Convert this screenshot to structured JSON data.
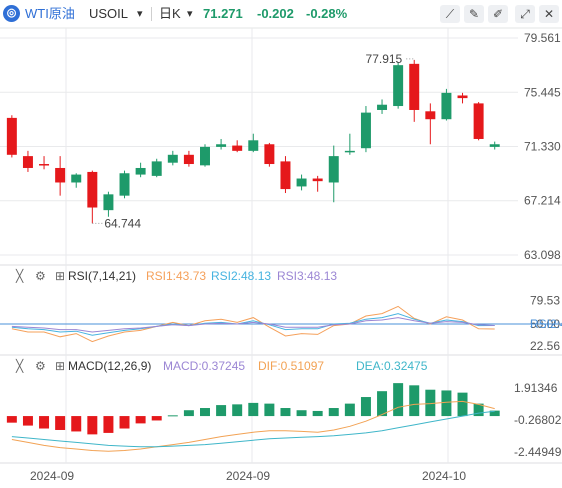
{
  "header": {
    "symbol_icon": "chart-logo-icon",
    "name": "WTI原油",
    "code": "USOIL",
    "interval": "日K",
    "price": "71.271",
    "change": "-0.202",
    "change_pct": "-0.28%",
    "tools": [
      "line-draw-icon",
      "pencil-icon",
      "brush-icon",
      "expand-icon",
      "close-icon"
    ]
  },
  "colors": {
    "up": "#1e9a6a",
    "down": "#e5181b",
    "rsi1": "#f5a05a",
    "rsi2": "#46b3e0",
    "rsi3": "#9b86d4",
    "dif": "#f2a254",
    "dea": "#3fb6c9",
    "axis_text": "#555555",
    "grid": "#e9eaec",
    "price_text": "#1e9a6a"
  },
  "rsi_panel": {
    "label": "RSI(7,14,21)",
    "rsi1": "RSI1:43.73",
    "rsi2": "RSI2:48.13",
    "rsi3": "RSI3:48.13"
  },
  "macd_panel": {
    "label": "MACD(12,26,9)",
    "macd": "MACD:0.37245",
    "dif": "DIF:0.51097",
    "dea": "DEA:0.32475"
  },
  "chart_data": [
    {
      "type": "candlestick",
      "panel": "price",
      "y_ticks": [
        "79.561",
        "75.445",
        "71.330",
        "67.214",
        "63.098"
      ],
      "ylim": [
        63.098,
        79.561
      ],
      "annotations": {
        "high": "77.915",
        "low": "64.744"
      },
      "x_labels": [
        "2024-09",
        "2024-09",
        "2024-10"
      ],
      "candles": [
        {
          "o": 73.5,
          "h": 73.7,
          "l": 70.5,
          "c": 70.7
        },
        {
          "o": 70.6,
          "h": 71.0,
          "l": 69.4,
          "c": 69.7
        },
        {
          "o": 70.0,
          "h": 70.6,
          "l": 69.6,
          "c": 69.9
        },
        {
          "o": 69.7,
          "h": 70.6,
          "l": 67.6,
          "c": 68.6
        },
        {
          "o": 68.6,
          "h": 69.3,
          "l": 68.2,
          "c": 69.2
        },
        {
          "o": 69.4,
          "h": 69.5,
          "l": 65.5,
          "c": 66.7
        },
        {
          "o": 66.5,
          "h": 67.9,
          "l": 66.0,
          "c": 67.7
        },
        {
          "o": 67.6,
          "h": 69.5,
          "l": 67.4,
          "c": 69.3
        },
        {
          "o": 69.2,
          "h": 70.1,
          "l": 69.0,
          "c": 69.7
        },
        {
          "o": 69.1,
          "h": 70.4,
          "l": 69.0,
          "c": 70.2
        },
        {
          "o": 70.1,
          "h": 71.0,
          "l": 69.9,
          "c": 70.7
        },
        {
          "o": 70.7,
          "h": 71.0,
          "l": 69.8,
          "c": 70.0
        },
        {
          "o": 69.9,
          "h": 71.5,
          "l": 69.8,
          "c": 71.3
        },
        {
          "o": 71.3,
          "h": 71.9,
          "l": 71.1,
          "c": 71.5
        },
        {
          "o": 71.4,
          "h": 71.8,
          "l": 70.9,
          "c": 71.0
        },
        {
          "o": 71.0,
          "h": 72.3,
          "l": 70.9,
          "c": 71.8
        },
        {
          "o": 71.5,
          "h": 71.6,
          "l": 69.8,
          "c": 70.0
        },
        {
          "o": 70.2,
          "h": 70.6,
          "l": 67.8,
          "c": 68.1
        },
        {
          "o": 68.3,
          "h": 69.2,
          "l": 68.0,
          "c": 68.9
        },
        {
          "o": 68.9,
          "h": 69.1,
          "l": 67.9,
          "c": 68.7
        },
        {
          "o": 68.6,
          "h": 71.4,
          "l": 67.1,
          "c": 70.6
        },
        {
          "o": 70.9,
          "h": 72.3,
          "l": 70.7,
          "c": 71.0
        },
        {
          "o": 71.2,
          "h": 74.4,
          "l": 70.9,
          "c": 73.9
        },
        {
          "o": 74.1,
          "h": 74.9,
          "l": 73.8,
          "c": 74.5
        },
        {
          "o": 74.4,
          "h": 77.7,
          "l": 74.2,
          "c": 77.5
        },
        {
          "o": 77.6,
          "h": 77.9,
          "l": 73.2,
          "c": 74.1
        },
        {
          "o": 74.0,
          "h": 74.6,
          "l": 71.5,
          "c": 73.4
        },
        {
          "o": 73.4,
          "h": 75.7,
          "l": 73.3,
          "c": 75.4
        },
        {
          "o": 75.2,
          "h": 75.4,
          "l": 74.6,
          "c": 75.0
        },
        {
          "o": 74.6,
          "h": 74.7,
          "l": 71.8,
          "c": 71.9
        },
        {
          "o": 71.3,
          "h": 71.7,
          "l": 71.1,
          "c": 71.5
        }
      ]
    },
    {
      "type": "line",
      "panel": "rsi",
      "y_ticks": [
        "79.53",
        "50.00",
        "22.56"
      ],
      "ylim": [
        15,
        95
      ],
      "series": [
        {
          "name": "RSI1",
          "values": [
            44,
            40,
            40,
            34,
            38,
            28,
            35,
            40,
            42,
            47,
            52,
            48,
            54,
            56,
            52,
            58,
            46,
            35,
            38,
            37,
            48,
            50,
            60,
            63,
            72,
            57,
            50,
            59,
            55,
            44,
            43.73
          ]
        },
        {
          "name": "RSI2",
          "values": [
            46,
            44,
            43,
            40,
            41,
            36,
            39,
            42,
            44,
            47,
            50,
            48,
            51,
            52,
            50,
            54,
            49,
            43,
            44,
            44,
            50,
            51,
            56,
            58,
            63,
            56,
            51,
            55,
            53,
            48,
            48.13
          ]
        },
        {
          "name": "RSI3",
          "values": [
            47,
            46,
            45,
            43,
            43,
            40,
            42,
            44,
            45,
            47,
            49,
            48,
            50,
            51,
            50,
            52,
            50,
            46,
            46,
            46,
            49,
            50,
            54,
            55,
            58,
            54,
            51,
            53,
            52,
            49,
            48.13
          ]
        }
      ]
    },
    {
      "type": "bar+line",
      "panel": "macd",
      "y_ticks": [
        "1.91346",
        "-0.26802",
        "-2.44949"
      ],
      "ylim": [
        -3.0,
        2.6
      ],
      "series": [
        {
          "name": "MACD",
          "values": [
            -0.45,
            -0.65,
            -0.85,
            -0.95,
            -1.05,
            -1.25,
            -1.15,
            -0.85,
            -0.5,
            -0.3,
            0.05,
            0.4,
            0.55,
            0.75,
            0.8,
            0.9,
            0.85,
            0.55,
            0.4,
            0.35,
            0.55,
            0.85,
            1.3,
            1.7,
            2.25,
            2.1,
            1.8,
            1.75,
            1.6,
            0.85,
            0.37245
          ]
        },
        {
          "name": "DIF",
          "values": [
            -1.6,
            -1.8,
            -2.0,
            -2.15,
            -2.25,
            -2.35,
            -2.4,
            -2.35,
            -2.25,
            -2.1,
            -1.95,
            -1.8,
            -1.6,
            -1.4,
            -1.25,
            -1.1,
            -1.0,
            -1.0,
            -1.05,
            -1.1,
            -0.95,
            -0.7,
            -0.35,
            0.1,
            0.6,
            0.8,
            0.85,
            0.95,
            1.0,
            0.8,
            0.51097
          ]
        },
        {
          "name": "DEA",
          "values": [
            -1.4,
            -1.5,
            -1.6,
            -1.7,
            -1.8,
            -1.9,
            -2.0,
            -2.05,
            -2.1,
            -2.1,
            -2.05,
            -2.0,
            -1.95,
            -1.85,
            -1.75,
            -1.65,
            -1.55,
            -1.5,
            -1.45,
            -1.4,
            -1.35,
            -1.25,
            -1.15,
            -1.0,
            -0.8,
            -0.6,
            -0.4,
            -0.2,
            0.0,
            0.2,
            0.32475
          ]
        }
      ]
    }
  ]
}
